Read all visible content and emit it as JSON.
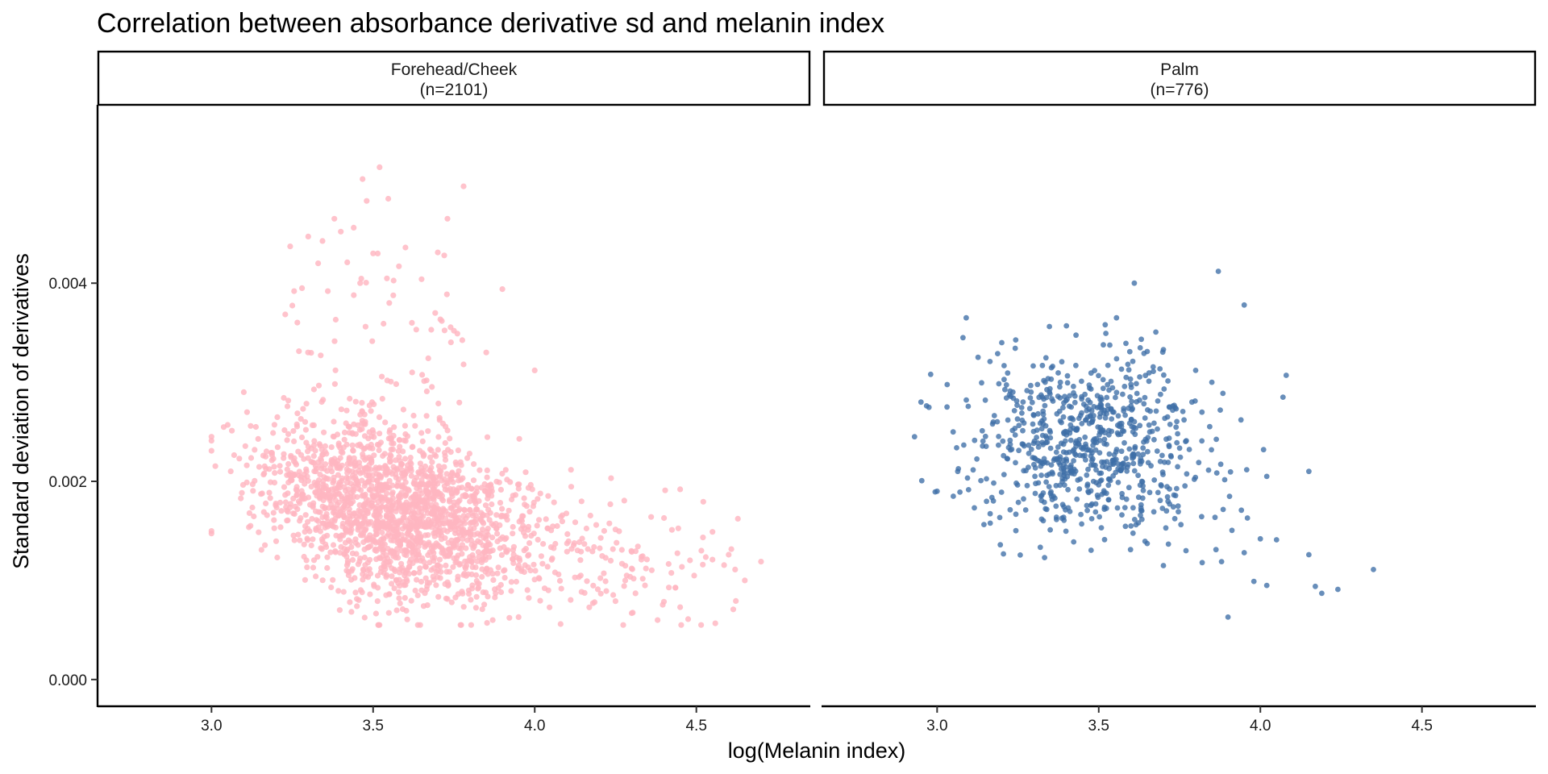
{
  "chart_data": {
    "type": "scatter",
    "title": "Correlation between absorbance derivative sd and melanin index",
    "xlabel": "log(Melanin index)",
    "ylabel": "Standard deviation of derivatives",
    "xlim": [
      2.65,
      4.85
    ],
    "ylim": [
      -0.00027,
      0.0058
    ],
    "x_ticks": [
      3.0,
      3.5,
      4.0,
      4.5
    ],
    "x_tick_labels": [
      "3.0",
      "3.5",
      "4.0",
      "4.5"
    ],
    "y_ticks": [
      0.0,
      0.002,
      0.004
    ],
    "y_tick_labels": [
      "0.000",
      "0.002",
      "0.004"
    ],
    "grid": false,
    "legend": "none",
    "panels": [
      {
        "strip_label": [
          "Forehead/Cheek",
          "(n=2101)"
        ],
        "n": 2101,
        "color": "#FFB6C1",
        "distribution": {
          "x_center": 3.55,
          "x_sd": 0.2,
          "x_range": [
            3.0,
            4.7
          ],
          "y_at_x3_3": 0.0019,
          "y_slope_per_unit_x": -0.00075,
          "y_range": [
            0.00055,
            0.0052
          ]
        },
        "points": [
          [
            3.0,
            0.00241
          ],
          [
            3.05,
            0.00257
          ],
          [
            3.1,
            0.0029
          ],
          [
            3.28,
            0.00395
          ],
          [
            3.33,
            0.0042
          ],
          [
            3.36,
            0.00392
          ],
          [
            3.38,
            0.00465
          ],
          [
            3.4,
            0.00452
          ],
          [
            3.42,
            0.00421
          ],
          [
            3.44,
            0.00456
          ],
          [
            3.46,
            0.004
          ],
          [
            3.48,
            0.00483
          ],
          [
            3.5,
            0.0043
          ],
          [
            3.52,
            0.00517
          ],
          [
            3.55,
            0.0038
          ],
          [
            3.58,
            0.00417
          ],
          [
            3.6,
            0.00436
          ],
          [
            3.62,
            0.0036
          ],
          [
            3.65,
            0.00404
          ],
          [
            3.68,
            0.00353
          ],
          [
            3.7,
            0.00431
          ],
          [
            3.72,
            0.00428
          ],
          [
            3.73,
            0.00465
          ],
          [
            3.75,
            0.00352
          ],
          [
            3.78,
            0.00318
          ],
          [
            3.85,
            0.0033
          ],
          [
            3.9,
            0.00394
          ],
          [
            4.0,
            0.00312
          ],
          [
            3.37,
            0.00093
          ],
          [
            3.45,
            0.00074
          ],
          [
            3.55,
            0.00086
          ],
          [
            3.65,
            0.0009
          ],
          [
            3.87,
            0.0006
          ],
          [
            3.95,
            0.00063
          ],
          [
            4.08,
            0.00056
          ],
          [
            4.18,
            0.00077
          ],
          [
            4.3,
            0.00067
          ],
          [
            4.38,
            0.0006
          ],
          [
            4.45,
            0.00073
          ],
          [
            4.52,
            0.00116
          ],
          [
            4.55,
            0.00121
          ],
          [
            4.6,
            0.00126
          ],
          [
            4.62,
            0.00111
          ],
          [
            4.65,
            0.001
          ],
          [
            4.7,
            0.00119
          ],
          [
            4.4,
            0.00163
          ],
          [
            4.45,
            0.00192
          ],
          [
            4.55,
            0.00149
          ],
          [
            4.33,
            0.00121
          ],
          [
            4.28,
            0.001
          ]
        ]
      },
      {
        "strip_label": [
          "Palm",
          "(n=776)"
        ],
        "n": 776,
        "color": "#3E6EA6",
        "distribution": {
          "x_center": 3.48,
          "x_sd": 0.18,
          "x_range": [
            2.93,
            4.35
          ],
          "y_center": 0.0024,
          "y_sd": 0.00042,
          "y_range": [
            0.00063,
            0.0041
          ]
        },
        "points": [
          [
            2.93,
            0.00245
          ],
          [
            2.95,
            0.0028
          ],
          [
            2.98,
            0.00308
          ],
          [
            3.0,
            0.0019
          ],
          [
            3.05,
            0.00185
          ],
          [
            3.09,
            0.00365
          ],
          [
            3.08,
            0.00345
          ],
          [
            3.2,
            0.0034
          ],
          [
            3.35,
            0.00151
          ],
          [
            3.4,
            0.00357
          ],
          [
            3.52,
            0.00358
          ],
          [
            3.61,
            0.004
          ],
          [
            3.65,
            0.00331
          ],
          [
            3.7,
            0.00333
          ],
          [
            3.8,
            0.00312
          ],
          [
            3.85,
            0.003
          ],
          [
            3.87,
            0.00412
          ],
          [
            3.95,
            0.00378
          ],
          [
            4.08,
            0.00307
          ],
          [
            4.07,
            0.00285
          ],
          [
            3.9,
            0.00063
          ],
          [
            3.7,
            0.00115
          ],
          [
            3.77,
            0.0013
          ],
          [
            3.82,
            0.00118
          ],
          [
            3.88,
            0.00119
          ],
          [
            3.95,
            0.00128
          ],
          [
            3.98,
            0.00099
          ],
          [
            4.02,
            0.00095
          ],
          [
            4.0,
            0.00142
          ],
          [
            4.05,
            0.00141
          ],
          [
            4.15,
            0.00126
          ],
          [
            4.17,
            0.00094
          ],
          [
            4.19,
            0.00087
          ],
          [
            4.24,
            0.00091
          ],
          [
            4.35,
            0.00111
          ],
          [
            4.15,
            0.0021
          ],
          [
            4.01,
            0.00232
          ],
          [
            4.02,
            0.00205
          ],
          [
            3.96,
            0.00163
          ],
          [
            3.94,
            0.00262
          ]
        ]
      }
    ]
  }
}
